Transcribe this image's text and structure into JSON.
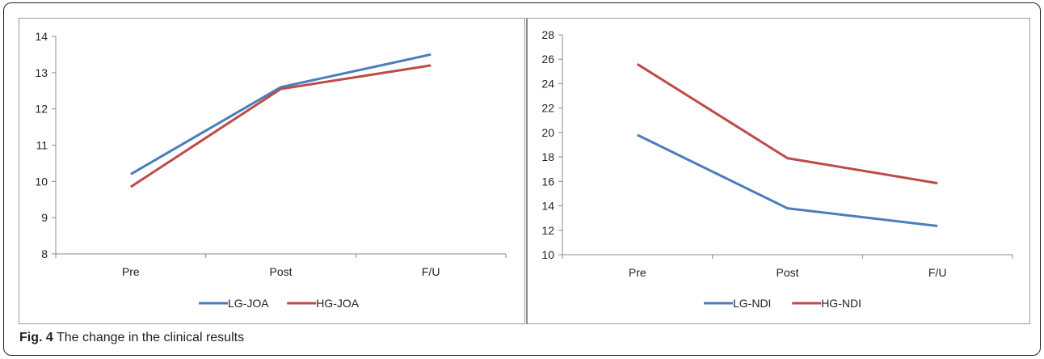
{
  "caption": {
    "label": "Fig. 4",
    "text": "The change in the clinical results"
  },
  "chart_data": [
    {
      "type": "line",
      "categories": [
        "Pre",
        "Post",
        "F/U"
      ],
      "series": [
        {
          "name": "LG-JOA",
          "values": [
            10.2,
            12.6,
            13.5
          ],
          "color": "#4a7ebb"
        },
        {
          "name": "HG-JOA",
          "values": [
            9.85,
            12.55,
            13.2
          ],
          "color": "#be4b48"
        }
      ],
      "ylim": [
        8,
        14
      ],
      "yticks": [
        8,
        9,
        10,
        11,
        12,
        13,
        14
      ],
      "grid": false,
      "legend": "bottom",
      "title": "",
      "xlabel": "",
      "ylabel": ""
    },
    {
      "type": "line",
      "categories": [
        "Pre",
        "Post",
        "F/U"
      ],
      "series": [
        {
          "name": "LG-NDI",
          "values": [
            19.8,
            13.8,
            12.35
          ],
          "color": "#4a7ebb"
        },
        {
          "name": "HG-NDI",
          "values": [
            25.6,
            17.9,
            15.85
          ],
          "color": "#be4b48"
        }
      ],
      "ylim": [
        10,
        28
      ],
      "yticks": [
        10,
        12,
        14,
        16,
        18,
        20,
        22,
        24,
        26,
        28
      ],
      "grid": false,
      "legend": "bottom",
      "title": "",
      "xlabel": "",
      "ylabel": ""
    }
  ]
}
